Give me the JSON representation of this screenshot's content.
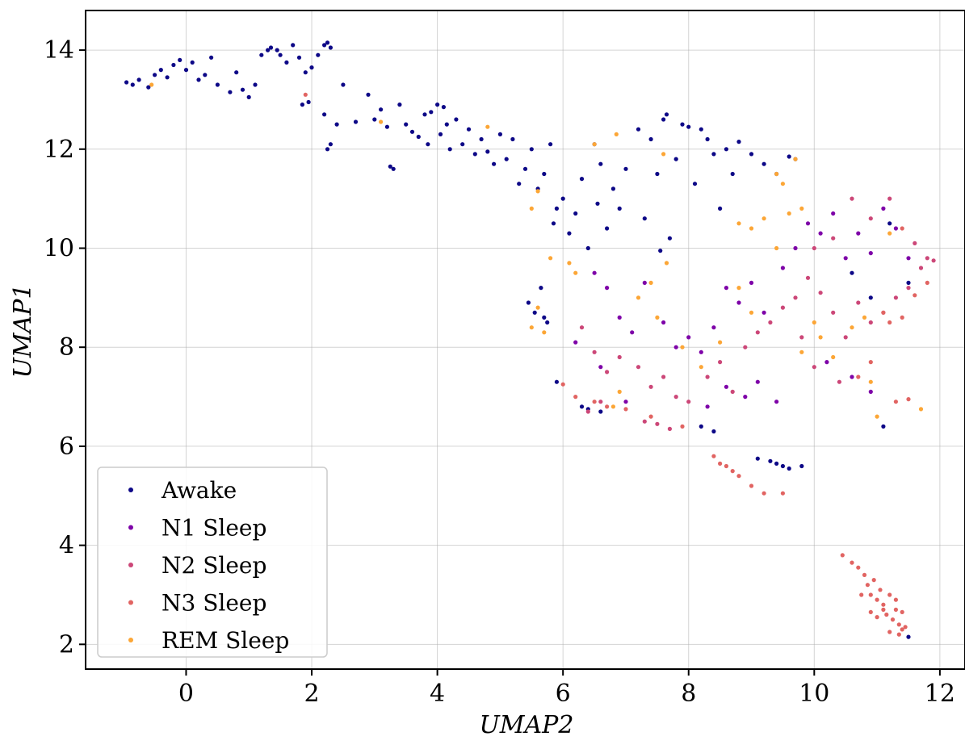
{
  "chart_data": {
    "type": "scatter",
    "xlabel": "UMAP2",
    "ylabel": "UMAP1",
    "xlim": [
      -1.6,
      12.4
    ],
    "ylim": [
      1.5,
      14.8
    ],
    "xticks": [
      0,
      2,
      4,
      6,
      8,
      10,
      12
    ],
    "yticks": [
      2,
      4,
      6,
      8,
      10,
      12,
      14
    ],
    "grid": true,
    "legend_position": "lower-left",
    "series": [
      {
        "name": "Awake",
        "color": "#0d0887",
        "points": [
          [
            -0.95,
            13.35
          ],
          [
            -0.85,
            13.3
          ],
          [
            -0.75,
            13.4
          ],
          [
            -0.6,
            13.25
          ],
          [
            -0.5,
            13.5
          ],
          [
            -0.4,
            13.6
          ],
          [
            -0.3,
            13.45
          ],
          [
            -0.2,
            13.7
          ],
          [
            -0.1,
            13.8
          ],
          [
            0.0,
            13.6
          ],
          [
            0.1,
            13.75
          ],
          [
            0.2,
            13.4
          ],
          [
            0.3,
            13.5
          ],
          [
            0.4,
            13.85
          ],
          [
            0.5,
            13.3
          ],
          [
            0.7,
            13.15
          ],
          [
            0.8,
            13.55
          ],
          [
            0.9,
            13.2
          ],
          [
            1.0,
            13.05
          ],
          [
            1.1,
            13.3
          ],
          [
            1.2,
            13.9
          ],
          [
            1.3,
            14.0
          ],
          [
            1.35,
            14.05
          ],
          [
            1.45,
            14.0
          ],
          [
            1.5,
            13.9
          ],
          [
            1.6,
            13.75
          ],
          [
            1.7,
            14.1
          ],
          [
            1.8,
            13.85
          ],
          [
            1.9,
            13.55
          ],
          [
            2.0,
            13.65
          ],
          [
            2.1,
            13.9
          ],
          [
            2.2,
            14.1
          ],
          [
            2.25,
            14.15
          ],
          [
            2.3,
            14.05
          ],
          [
            1.85,
            12.9
          ],
          [
            1.95,
            12.95
          ],
          [
            2.2,
            12.7
          ],
          [
            2.3,
            12.1
          ],
          [
            2.25,
            12.0
          ],
          [
            2.4,
            12.5
          ],
          [
            2.5,
            13.3
          ],
          [
            2.7,
            12.55
          ],
          [
            2.9,
            13.1
          ],
          [
            3.0,
            12.6
          ],
          [
            3.1,
            12.8
          ],
          [
            3.2,
            12.45
          ],
          [
            3.3,
            11.6
          ],
          [
            3.25,
            11.65
          ],
          [
            3.4,
            12.9
          ],
          [
            3.5,
            12.5
          ],
          [
            3.6,
            12.35
          ],
          [
            3.7,
            12.25
          ],
          [
            3.8,
            12.7
          ],
          [
            3.85,
            12.1
          ],
          [
            3.9,
            12.75
          ],
          [
            4.0,
            12.9
          ],
          [
            4.05,
            12.3
          ],
          [
            4.1,
            12.85
          ],
          [
            4.15,
            12.5
          ],
          [
            4.2,
            12.0
          ],
          [
            4.3,
            12.6
          ],
          [
            4.4,
            12.1
          ],
          [
            4.5,
            12.4
          ],
          [
            4.6,
            11.9
          ],
          [
            4.7,
            12.2
          ],
          [
            4.8,
            11.95
          ],
          [
            4.9,
            11.7
          ],
          [
            5.0,
            12.3
          ],
          [
            5.1,
            11.8
          ],
          [
            5.2,
            12.2
          ],
          [
            5.3,
            11.3
          ],
          [
            5.4,
            11.6
          ],
          [
            5.5,
            12.0
          ],
          [
            5.6,
            11.2
          ],
          [
            5.7,
            11.5
          ],
          [
            5.8,
            12.1
          ],
          [
            5.85,
            10.5
          ],
          [
            5.9,
            10.8
          ],
          [
            6.0,
            11.0
          ],
          [
            6.1,
            10.3
          ],
          [
            6.2,
            10.7
          ],
          [
            6.3,
            11.4
          ],
          [
            6.4,
            10.0
          ],
          [
            6.5,
            12.1
          ],
          [
            6.55,
            10.9
          ],
          [
            6.6,
            11.7
          ],
          [
            6.7,
            10.4
          ],
          [
            6.8,
            11.2
          ],
          [
            6.9,
            10.8
          ],
          [
            7.0,
            11.6
          ],
          [
            7.2,
            12.4
          ],
          [
            7.3,
            10.6
          ],
          [
            7.4,
            12.2
          ],
          [
            7.5,
            11.5
          ],
          [
            7.55,
            9.95
          ],
          [
            7.6,
            12.6
          ],
          [
            7.65,
            12.7
          ],
          [
            7.7,
            10.2
          ],
          [
            7.8,
            11.8
          ],
          [
            7.9,
            12.5
          ],
          [
            8.0,
            12.45
          ],
          [
            8.1,
            11.3
          ],
          [
            8.2,
            12.4
          ],
          [
            8.3,
            12.2
          ],
          [
            8.4,
            11.9
          ],
          [
            8.5,
            10.8
          ],
          [
            8.6,
            12.0
          ],
          [
            8.7,
            11.5
          ],
          [
            8.8,
            12.15
          ],
          [
            9.0,
            11.9
          ],
          [
            9.2,
            11.7
          ],
          [
            9.4,
            11.5
          ],
          [
            9.6,
            11.85
          ],
          [
            9.7,
            11.8
          ],
          [
            5.45,
            8.9
          ],
          [
            5.55,
            8.7
          ],
          [
            5.65,
            9.2
          ],
          [
            5.75,
            8.5
          ],
          [
            5.7,
            8.6
          ],
          [
            5.9,
            7.3
          ],
          [
            6.3,
            6.8
          ],
          [
            6.4,
            6.75
          ],
          [
            6.6,
            6.7
          ],
          [
            8.2,
            6.4
          ],
          [
            8.4,
            6.3
          ],
          [
            9.1,
            5.75
          ],
          [
            9.3,
            5.7
          ],
          [
            9.4,
            5.65
          ],
          [
            9.5,
            5.6
          ],
          [
            9.6,
            5.55
          ],
          [
            9.8,
            5.6
          ],
          [
            11.1,
            6.4
          ],
          [
            11.5,
            2.15
          ],
          [
            11.2,
            10.5
          ],
          [
            11.5,
            9.3
          ],
          [
            10.9,
            9.0
          ],
          [
            10.6,
            9.5
          ]
        ]
      },
      {
        "name": "N1 Sleep",
        "color": "#7e03a8",
        "points": [
          [
            6.5,
            9.5
          ],
          [
            6.7,
            9.2
          ],
          [
            6.9,
            8.6
          ],
          [
            7.1,
            8.3
          ],
          [
            7.3,
            9.3
          ],
          [
            7.6,
            8.5
          ],
          [
            7.8,
            8.0
          ],
          [
            8.0,
            8.2
          ],
          [
            8.2,
            7.9
          ],
          [
            8.4,
            8.4
          ],
          [
            8.6,
            9.2
          ],
          [
            8.8,
            8.9
          ],
          [
            9.0,
            9.3
          ],
          [
            9.2,
            8.7
          ],
          [
            9.5,
            9.6
          ],
          [
            9.7,
            10.0
          ],
          [
            9.9,
            10.5
          ],
          [
            10.1,
            10.3
          ],
          [
            10.3,
            10.7
          ],
          [
            10.5,
            9.8
          ],
          [
            10.7,
            10.3
          ],
          [
            10.9,
            9.9
          ],
          [
            11.1,
            10.8
          ],
          [
            11.3,
            10.4
          ],
          [
            11.5,
            9.8
          ],
          [
            8.6,
            7.2
          ],
          [
            8.9,
            7.0
          ],
          [
            9.1,
            7.3
          ],
          [
            9.4,
            6.9
          ],
          [
            10.2,
            7.7
          ],
          [
            10.6,
            7.4
          ],
          [
            10.9,
            7.1
          ],
          [
            8.3,
            6.8
          ],
          [
            7.0,
            6.9
          ],
          [
            6.6,
            7.6
          ],
          [
            6.2,
            8.1
          ]
        ]
      },
      {
        "name": "N2 Sleep",
        "color": "#cc4778",
        "points": [
          [
            6.3,
            8.4
          ],
          [
            6.5,
            7.9
          ],
          [
            6.7,
            7.5
          ],
          [
            6.9,
            7.8
          ],
          [
            7.2,
            7.6
          ],
          [
            7.4,
            7.2
          ],
          [
            7.6,
            7.4
          ],
          [
            7.8,
            7.0
          ],
          [
            8.0,
            6.9
          ],
          [
            8.3,
            7.4
          ],
          [
            8.5,
            7.7
          ],
          [
            8.7,
            7.1
          ],
          [
            8.9,
            8.0
          ],
          [
            9.1,
            8.3
          ],
          [
            9.3,
            8.5
          ],
          [
            9.5,
            8.8
          ],
          [
            9.7,
            9.0
          ],
          [
            9.9,
            9.4
          ],
          [
            10.1,
            9.1
          ],
          [
            10.3,
            8.7
          ],
          [
            10.5,
            8.2
          ],
          [
            10.7,
            8.9
          ],
          [
            10.9,
            8.5
          ],
          [
            11.1,
            8.7
          ],
          [
            11.3,
            9.0
          ],
          [
            11.5,
            9.2
          ],
          [
            11.7,
            9.6
          ],
          [
            11.8,
            9.8
          ],
          [
            11.9,
            9.75
          ],
          [
            11.6,
            10.1
          ],
          [
            11.2,
            11.0
          ],
          [
            10.9,
            10.6
          ],
          [
            10.6,
            11.0
          ],
          [
            10.3,
            10.2
          ],
          [
            10.0,
            10.0
          ],
          [
            9.8,
            8.2
          ],
          [
            10.0,
            7.6
          ],
          [
            10.4,
            7.3
          ],
          [
            6.4,
            6.7
          ],
          [
            6.6,
            6.9
          ],
          [
            7.3,
            6.5
          ],
          [
            7.5,
            6.45
          ],
          [
            7.7,
            6.35
          ]
        ]
      },
      {
        "name": "N3 Sleep",
        "color": "#e16462",
        "points": [
          [
            10.45,
            3.8
          ],
          [
            10.6,
            3.65
          ],
          [
            10.7,
            3.55
          ],
          [
            10.8,
            3.4
          ],
          [
            10.85,
            3.2
          ],
          [
            10.9,
            3.0
          ],
          [
            10.95,
            3.3
          ],
          [
            11.0,
            2.9
          ],
          [
            11.05,
            3.1
          ],
          [
            11.1,
            2.8
          ],
          [
            11.15,
            2.6
          ],
          [
            11.2,
            3.0
          ],
          [
            11.25,
            2.5
          ],
          [
            11.3,
            2.7
          ],
          [
            11.35,
            2.4
          ],
          [
            11.4,
            2.3
          ],
          [
            11.45,
            2.35
          ],
          [
            11.2,
            2.25
          ],
          [
            11.3,
            2.9
          ],
          [
            11.1,
            2.7
          ],
          [
            11.0,
            2.55
          ],
          [
            10.9,
            2.65
          ],
          [
            10.75,
            3.0
          ],
          [
            11.4,
            2.65
          ],
          [
            11.35,
            2.2
          ],
          [
            8.4,
            5.8
          ],
          [
            8.5,
            5.65
          ],
          [
            8.7,
            5.5
          ],
          [
            8.8,
            5.4
          ],
          [
            9.0,
            5.2
          ],
          [
            9.2,
            5.05
          ],
          [
            9.5,
            5.05
          ],
          [
            8.6,
            5.6
          ],
          [
            6.0,
            7.25
          ],
          [
            6.2,
            7.0
          ],
          [
            6.5,
            6.9
          ],
          [
            6.7,
            6.8
          ],
          [
            7.0,
            6.75
          ],
          [
            7.4,
            6.6
          ],
          [
            7.9,
            6.4
          ],
          [
            11.3,
            6.9
          ],
          [
            11.5,
            6.95
          ],
          [
            10.7,
            7.4
          ],
          [
            10.9,
            7.7
          ],
          [
            11.1,
            8.7
          ],
          [
            11.2,
            8.5
          ],
          [
            11.4,
            8.6
          ],
          [
            11.6,
            9.05
          ],
          [
            11.8,
            9.3
          ],
          [
            11.4,
            10.4
          ],
          [
            1.9,
            13.1
          ]
        ]
      },
      {
        "name": "REM Sleep",
        "color": "#fca636",
        "points": [
          [
            -0.55,
            13.3
          ],
          [
            3.1,
            12.55
          ],
          [
            4.8,
            12.45
          ],
          [
            5.6,
            11.15
          ],
          [
            5.5,
            10.8
          ],
          [
            6.5,
            12.1
          ],
          [
            6.85,
            12.3
          ],
          [
            7.6,
            11.9
          ],
          [
            7.65,
            9.7
          ],
          [
            7.4,
            9.3
          ],
          [
            7.2,
            9.0
          ],
          [
            7.5,
            8.6
          ],
          [
            6.1,
            9.7
          ],
          [
            5.8,
            9.8
          ],
          [
            6.2,
            9.5
          ],
          [
            5.6,
            8.8
          ],
          [
            5.5,
            8.4
          ],
          [
            5.7,
            8.3
          ],
          [
            8.8,
            10.5
          ],
          [
            9.0,
            10.4
          ],
          [
            9.2,
            10.6
          ],
          [
            9.4,
            10.0
          ],
          [
            9.6,
            10.7
          ],
          [
            9.8,
            10.8
          ],
          [
            9.4,
            11.5
          ],
          [
            9.7,
            11.8
          ],
          [
            9.5,
            11.3
          ],
          [
            10.0,
            8.5
          ],
          [
            10.1,
            8.2
          ],
          [
            9.8,
            7.9
          ],
          [
            10.3,
            7.8
          ],
          [
            10.6,
            8.4
          ],
          [
            10.8,
            8.6
          ],
          [
            10.9,
            7.3
          ],
          [
            11.0,
            6.6
          ],
          [
            11.7,
            6.75
          ],
          [
            9.0,
            8.7
          ],
          [
            8.5,
            8.1
          ],
          [
            7.9,
            8.0
          ],
          [
            8.2,
            7.6
          ],
          [
            6.8,
            6.8
          ],
          [
            6.9,
            7.1
          ],
          [
            8.8,
            9.2
          ],
          [
            11.2,
            10.3
          ]
        ]
      }
    ]
  }
}
